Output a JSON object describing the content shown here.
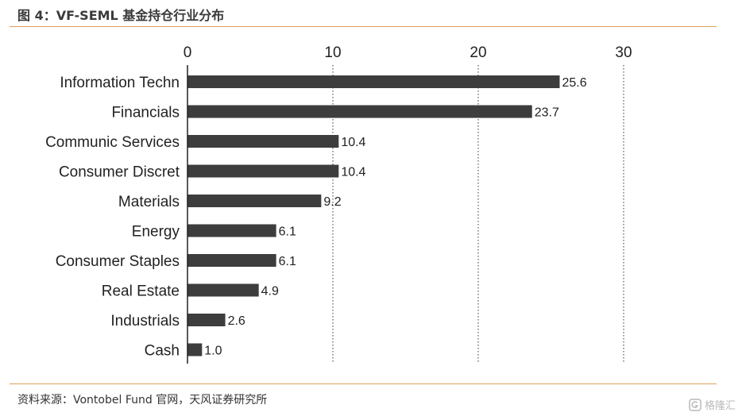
{
  "header": {
    "title": "图 4：VF-SEML 基金持仓行业分布"
  },
  "footer": {
    "source": "资料来源：Vontobel Fund 官网，天风证券研究所"
  },
  "watermark": {
    "text": "格隆汇",
    "icon": "brand-logo-icon"
  },
  "colors": {
    "bar": "#3d3d3d",
    "rule": "#e0a15b",
    "grid": "#333333"
  },
  "chart_data": {
    "type": "bar",
    "orientation": "horizontal",
    "categories": [
      "Information Techn",
      "Financials",
      "Communic Services",
      "Consumer Discret",
      "Materials",
      "Energy",
      "Consumer Staples",
      "Real Estate",
      "Industrials",
      "Cash"
    ],
    "values": [
      25.6,
      23.7,
      10.4,
      10.4,
      9.2,
      6.1,
      6.1,
      4.9,
      2.6,
      1.0
    ],
    "value_labels": [
      "25.6",
      "23.7",
      "10.4",
      "10.4",
      "9.2",
      "6.1",
      "6.1",
      "4.9",
      "2.6",
      "1.0"
    ],
    "ticks": [
      0,
      10,
      20,
      30
    ],
    "tick_labels": [
      "0",
      "10",
      "20",
      "30"
    ],
    "xlim": [
      0,
      30
    ],
    "axis_position": "top",
    "grid": "vertical dotted"
  }
}
